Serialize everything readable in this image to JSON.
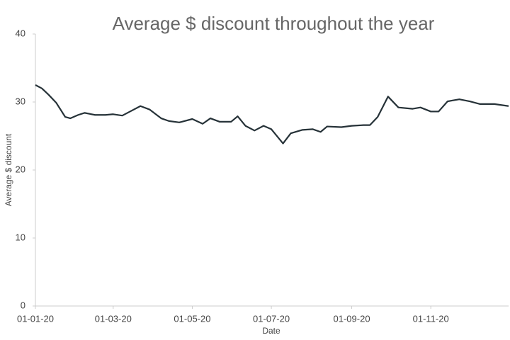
{
  "chart_data": {
    "type": "line",
    "title": "Average $ discount throughout the year",
    "x_label": "Date",
    "y_label": "Average $ discount",
    "x": [
      "01-01-20",
      "06-01-20",
      "11-01-20",
      "17-01-20",
      "24-01-20",
      "28-01-20",
      "03-02-20",
      "08-02-20",
      "16-02-20",
      "24-02-20",
      "01-03-20",
      "08-03-20",
      "14-03-20",
      "22-03-20",
      "29-03-20",
      "07-04-20",
      "13-04-20",
      "21-04-20",
      "01-05-20",
      "09-05-20",
      "15-05-20",
      "22-05-20",
      "31-05-20",
      "05-06-20",
      "11-06-20",
      "18-06-20",
      "25-06-20",
      "01-07-20",
      "10-07-20",
      "16-07-20",
      "25-07-20",
      "02-08-20",
      "08-08-20",
      "13-08-20",
      "24-08-20",
      "01-09-20",
      "10-09-20",
      "15-09-20",
      "21-09-20",
      "29-09-20",
      "07-10-20",
      "18-10-20",
      "24-10-20",
      "01-11-20",
      "07-11-20",
      "14-11-20",
      "23-11-20",
      "01-12-20",
      "09-12-20",
      "20-12-20",
      "31-12-20"
    ],
    "values": [
      32.5,
      32.0,
      31.1,
      29.9,
      27.8,
      27.6,
      28.1,
      28.4,
      28.1,
      28.1,
      28.2,
      28.0,
      28.6,
      29.4,
      28.9,
      27.6,
      27.2,
      27.0,
      27.5,
      26.8,
      27.6,
      27.1,
      27.1,
      27.9,
      26.5,
      25.8,
      26.5,
      26.0,
      23.9,
      25.4,
      25.9,
      26.0,
      25.6,
      26.4,
      26.3,
      26.5,
      26.6,
      26.6,
      27.8,
      30.8,
      29.2,
      29.0,
      29.2,
      28.6,
      28.6,
      30.1,
      30.4,
      30.1,
      29.7,
      29.7,
      29.4
    ],
    "color": "#263238",
    "xlim": [
      "01-01-20",
      "31-12-20"
    ],
    "xticks": [
      "01-01-20",
      "01-03-20",
      "01-05-20",
      "01-07-20",
      "01-09-20",
      "01-11-20"
    ],
    "ylim": [
      0,
      40
    ],
    "yticks": [
      0,
      10,
      20,
      30,
      40
    ],
    "grid": false
  }
}
